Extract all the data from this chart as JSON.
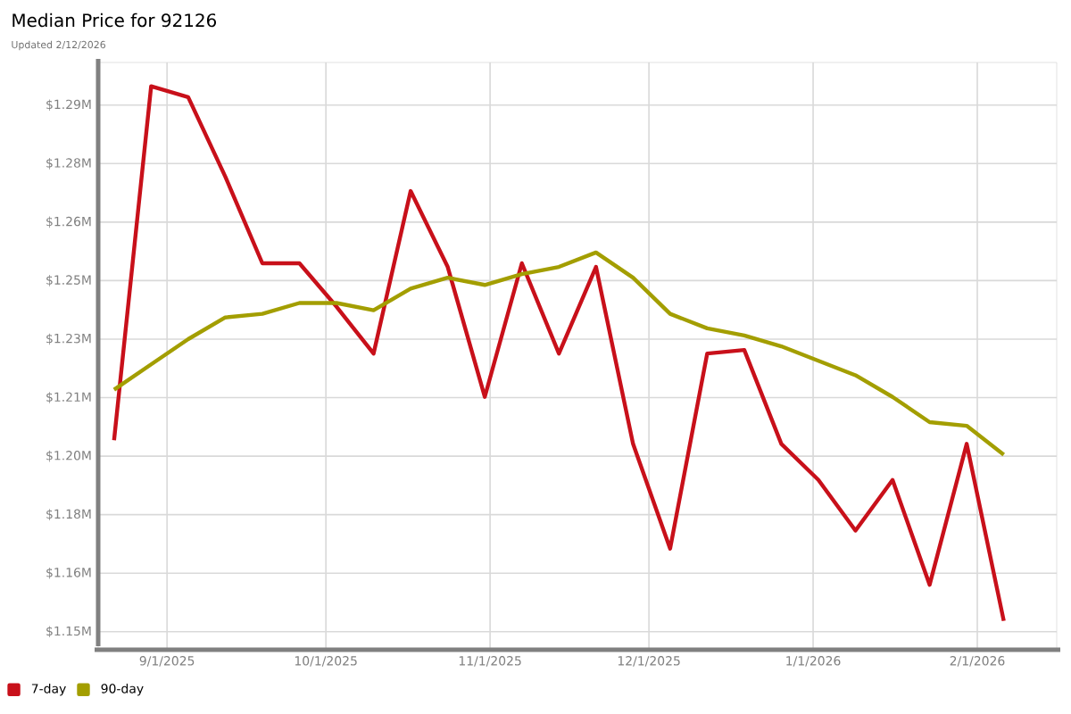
{
  "chart_data": {
    "type": "line",
    "title": "Median Price for 92126",
    "subtitle": "Updated 2/12/2026",
    "x": [
      "2025-08-22",
      "2025-08-29",
      "2025-09-05",
      "2025-09-12",
      "2025-09-19",
      "2025-09-26",
      "2025-10-03",
      "2025-10-10",
      "2025-10-17",
      "2025-10-24",
      "2025-10-31",
      "2025-11-07",
      "2025-11-14",
      "2025-11-21",
      "2025-11-28",
      "2025-12-05",
      "2025-12-12",
      "2025-12-19",
      "2025-12-26",
      "2026-01-02",
      "2026-01-09",
      "2026-01-16",
      "2026-01-23",
      "2026-01-30",
      "2026-02-06"
    ],
    "series": [
      {
        "name": "7-day",
        "color": "#c8101a",
        "values": [
          1.201,
          1.299,
          1.296,
          1.274,
          1.25,
          1.25,
          1.238,
          1.225,
          1.27,
          1.249,
          1.213,
          1.25,
          1.225,
          1.249,
          1.2,
          1.171,
          1.225,
          1.226,
          1.2,
          1.19,
          1.176,
          1.19,
          1.161,
          1.2,
          1.151
        ]
      },
      {
        "name": "90-day",
        "color": "#a39e00",
        "values": [
          1.215,
          1.222,
          1.229,
          1.235,
          1.236,
          1.239,
          1.239,
          1.237,
          1.243,
          1.246,
          1.244,
          1.247,
          1.249,
          1.253,
          1.246,
          1.236,
          1.232,
          1.23,
          1.227,
          1.223,
          1.219,
          1.213,
          1.206,
          1.205,
          1.197
        ]
      }
    ],
    "xlim": [
      "2025-08-19",
      "2026-02-16"
    ],
    "xticks": [
      {
        "value": "2025-09-01",
        "label": "9/1/2025"
      },
      {
        "value": "2025-10-01",
        "label": "10/1/2025"
      },
      {
        "value": "2025-11-01",
        "label": "11/1/2025"
      },
      {
        "value": "2025-12-01",
        "label": "12/1/2025"
      },
      {
        "value": "2026-01-01",
        "label": "1/1/2026"
      },
      {
        "value": "2026-02-01",
        "label": "2/1/2026"
      }
    ],
    "ylim": [
      1.143,
      1.3056
    ],
    "yticks": [
      {
        "value": 1.148,
        "label": "$1.15M"
      },
      {
        "value": 1.1642,
        "label": "$1.16M"
      },
      {
        "value": 1.1804,
        "label": "$1.18M"
      },
      {
        "value": 1.1966,
        "label": "$1.20M"
      },
      {
        "value": 1.2128,
        "label": "$1.21M"
      },
      {
        "value": 1.229,
        "label": "$1.23M"
      },
      {
        "value": 1.2452,
        "label": "$1.25M"
      },
      {
        "value": 1.2614,
        "label": "$1.26M"
      },
      {
        "value": 1.2776,
        "label": "$1.28M"
      },
      {
        "value": 1.2938,
        "label": "$1.29M"
      }
    ],
    "grid": true,
    "legend": "bottom left",
    "marker": "none",
    "line_style": "solid"
  }
}
